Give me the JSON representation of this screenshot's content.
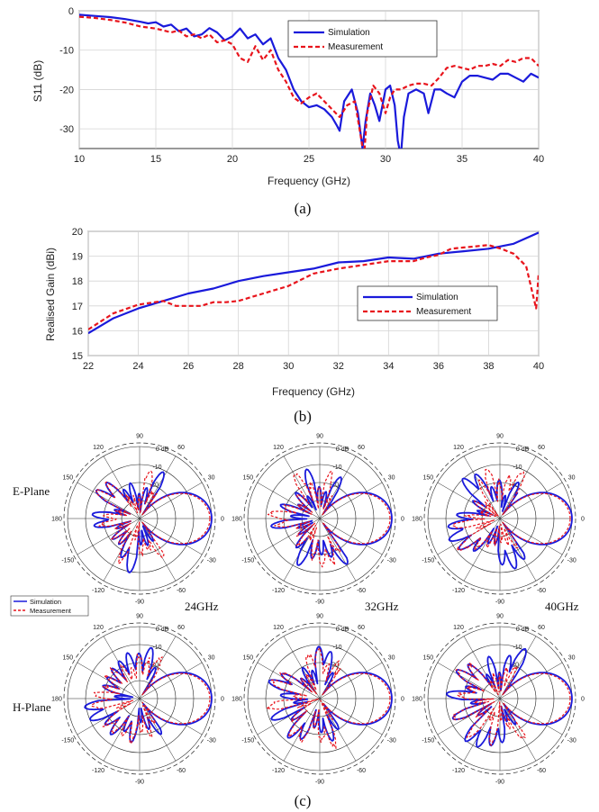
{
  "colors": {
    "simulation": "#1a1adb",
    "measurement": "#e8141c"
  },
  "captions": {
    "a": "(a)",
    "b": "(b)",
    "c": "(c)"
  },
  "plane_labels": {
    "e": "E-Plane",
    "h": "H-Plane"
  },
  "freq_labels": [
    "24GHz",
    "32GHz",
    "40GHz"
  ],
  "chart_data": [
    {
      "type": "line",
      "xlabel": "Frequency (GHz)",
      "ylabel": "S11 (dB)",
      "xlim": [
        10,
        40
      ],
      "ylim": [
        -35,
        0
      ],
      "xticks": [
        10,
        15,
        20,
        25,
        30,
        35,
        40
      ],
      "yticks": [
        0,
        -10,
        -20,
        -30
      ],
      "grid": true,
      "legend": "top-right",
      "series": [
        {
          "name": "Simulation",
          "x": [
            10,
            11,
            12,
            13,
            14,
            14.5,
            15,
            15.5,
            16,
            16.5,
            17,
            17.5,
            18,
            18.5,
            19,
            19.5,
            20,
            20.5,
            21,
            21.5,
            22,
            22.5,
            23,
            23.5,
            24,
            24.5,
            25,
            25.5,
            26,
            26.5,
            26.8,
            27,
            27.3,
            27.8,
            28.2,
            28.5,
            28.7,
            29,
            29.3,
            29.6,
            30,
            30.3,
            30.6,
            30.8,
            31,
            31.2,
            31.5,
            32,
            32.5,
            32.8,
            33.2,
            33.6,
            34,
            34.5,
            35,
            35.5,
            36,
            36.5,
            37,
            37.5,
            38,
            38.5,
            39,
            39.5,
            40
          ],
          "values": [
            -1,
            -1.3,
            -1.6,
            -2.1,
            -2.8,
            -3.2,
            -2.9,
            -4,
            -3.5,
            -5.2,
            -4.5,
            -6.5,
            -6,
            -4.4,
            -5.5,
            -7.5,
            -6.5,
            -4.5,
            -7,
            -6,
            -8.5,
            -7,
            -12,
            -15,
            -20,
            -23,
            -24.5,
            -24,
            -25,
            -27,
            -29,
            -30.5,
            -23,
            -20,
            -26,
            -35,
            -28,
            -21,
            -24,
            -28,
            -20,
            -19,
            -24,
            -33,
            -37,
            -27,
            -21,
            -20,
            -21,
            -26,
            -20,
            -20,
            -21,
            -22,
            -18,
            -16.5,
            -16.5,
            -17,
            -17.5,
            -16,
            -16,
            -17,
            -18,
            -16,
            -17
          ]
        },
        {
          "name": "Measurement",
          "x": [
            10,
            11,
            12,
            13,
            14,
            15,
            16,
            16.5,
            17,
            17.5,
            18,
            18.5,
            19,
            19.5,
            20,
            20.5,
            21,
            21.5,
            22,
            22.5,
            23,
            23.5,
            24,
            24.5,
            25,
            25.5,
            26,
            26.5,
            27,
            27.5,
            28,
            28.3,
            28.6,
            28.8,
            29.2,
            29.6,
            30,
            30.3,
            30.6,
            31,
            31.5,
            32,
            32.5,
            33,
            33.5,
            34,
            34.5,
            35,
            35.5,
            36,
            36.5,
            37,
            37.5,
            38,
            38.5,
            39,
            39.5,
            40
          ],
          "values": [
            -1.5,
            -1.8,
            -2.3,
            -3,
            -4,
            -4.5,
            -5.5,
            -5,
            -6.5,
            -6,
            -7,
            -6,
            -8,
            -7.5,
            -8.5,
            -12,
            -13,
            -9,
            -12.5,
            -10,
            -15,
            -18,
            -22,
            -23.5,
            -22,
            -21,
            -23,
            -25,
            -27,
            -24,
            -23,
            -30,
            -37,
            -26,
            -19,
            -21,
            -26,
            -22,
            -20,
            -20,
            -19,
            -18.5,
            -18.5,
            -19,
            -17,
            -14.5,
            -14,
            -14.5,
            -15,
            -14,
            -14,
            -13.5,
            -14,
            -12.5,
            -13,
            -12,
            -12,
            -14
          ]
        }
      ]
    },
    {
      "type": "line",
      "xlabel": "Frequency (GHz)",
      "ylabel": "Realised Gain (dBi)",
      "xlim": [
        22,
        40
      ],
      "ylim": [
        15,
        20
      ],
      "xticks": [
        22,
        24,
        26,
        28,
        30,
        32,
        34,
        36,
        38,
        40
      ],
      "yticks": [
        15,
        16,
        17,
        18,
        19,
        20
      ],
      "grid": true,
      "legend": "bottom-right",
      "series": [
        {
          "name": "Simulation",
          "x": [
            22,
            23,
            24,
            25,
            26,
            27,
            28,
            29,
            30,
            31,
            32,
            33,
            34,
            35,
            36,
            37,
            38,
            39,
            40
          ],
          "values": [
            15.9,
            16.5,
            16.9,
            17.2,
            17.5,
            17.7,
            18,
            18.2,
            18.35,
            18.5,
            18.75,
            18.8,
            18.95,
            18.9,
            19.1,
            19.2,
            19.3,
            19.5,
            19.95
          ]
        },
        {
          "name": "Measurement",
          "x": [
            22,
            23,
            24,
            25,
            25.5,
            26,
            26.5,
            27,
            27.5,
            28,
            29,
            30,
            31,
            32,
            33,
            34,
            35,
            35.5,
            36,
            36.5,
            37,
            37.5,
            38,
            38.5,
            39,
            39.5,
            39.9,
            40
          ],
          "values": [
            16.05,
            16.7,
            17.05,
            17.2,
            17,
            17,
            17,
            17.15,
            17.15,
            17.2,
            17.5,
            17.8,
            18.3,
            18.5,
            18.65,
            18.8,
            18.8,
            18.95,
            19.05,
            19.3,
            19.35,
            19.4,
            19.45,
            19.3,
            19.1,
            18.6,
            16.9,
            18.3
          ]
        }
      ]
    },
    {
      "type": "polar",
      "grid": true,
      "radial_ticks": [
        0,
        -10,
        -20
      ],
      "radial_unit": "dB",
      "radial_range": [
        -40,
        0
      ],
      "angle_ticks": [
        "90",
        "60",
        "30",
        "0",
        "-30",
        "-60",
        "-90",
        "-120",
        "-150",
        "180",
        "150",
        "120"
      ],
      "legend": [
        "Simulation",
        "Measurement"
      ],
      "panels": [
        {
          "plane": "E-Plane",
          "freq": "24GHz",
          "seed": 1
        },
        {
          "plane": "E-Plane",
          "freq": "32GHz",
          "seed": 2
        },
        {
          "plane": "E-Plane",
          "freq": "40GHz",
          "seed": 3
        },
        {
          "plane": "H-Plane",
          "freq": "24GHz",
          "seed": 4
        },
        {
          "plane": "H-Plane",
          "freq": "32GHz",
          "seed": 5
        },
        {
          "plane": "H-Plane",
          "freq": "40GHz",
          "seed": 6
        }
      ],
      "series": [
        {
          "name": "Simulation",
          "main_beam_angle_deg": 0,
          "main_beam_level_db": 0
        },
        {
          "name": "Measurement",
          "main_beam_angle_deg": 0,
          "main_beam_level_db": -1
        }
      ]
    }
  ]
}
